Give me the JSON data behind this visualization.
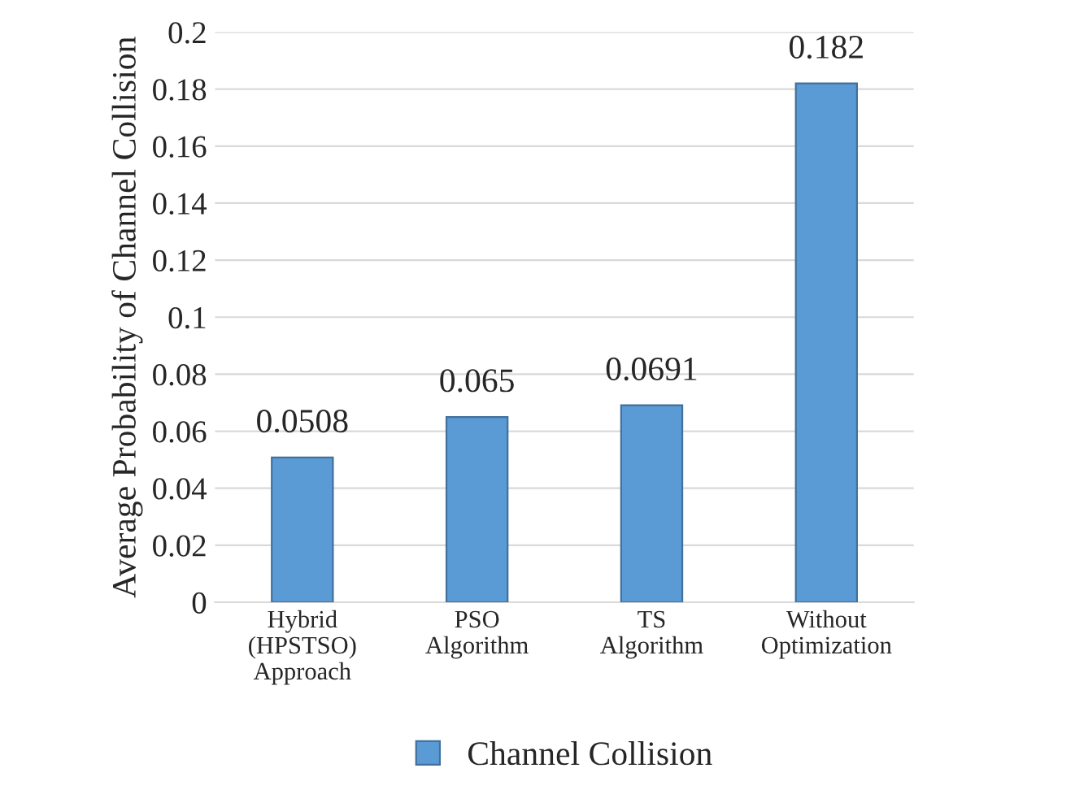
{
  "chart_data": {
    "type": "bar",
    "categories": [
      "Hybrid\n(HPSTSO)\nApproach",
      "PSO\nAlgorithm",
      "TS\nAlgorithm",
      "Without\nOptimization"
    ],
    "series": [
      {
        "name": "Channel Collision",
        "color": "#5b9bd5",
        "values": [
          0.0508,
          0.065,
          0.0691,
          0.182
        ]
      }
    ],
    "ylabel": "Average Probability of Channel Collision",
    "ylim": [
      0,
      0.2
    ],
    "yticks": [
      0,
      0.02,
      0.04,
      0.06,
      0.08,
      0.1,
      0.12,
      0.14,
      0.16,
      0.18,
      0.2
    ],
    "grid": "y",
    "legend": "bottom",
    "data_labels": true
  }
}
